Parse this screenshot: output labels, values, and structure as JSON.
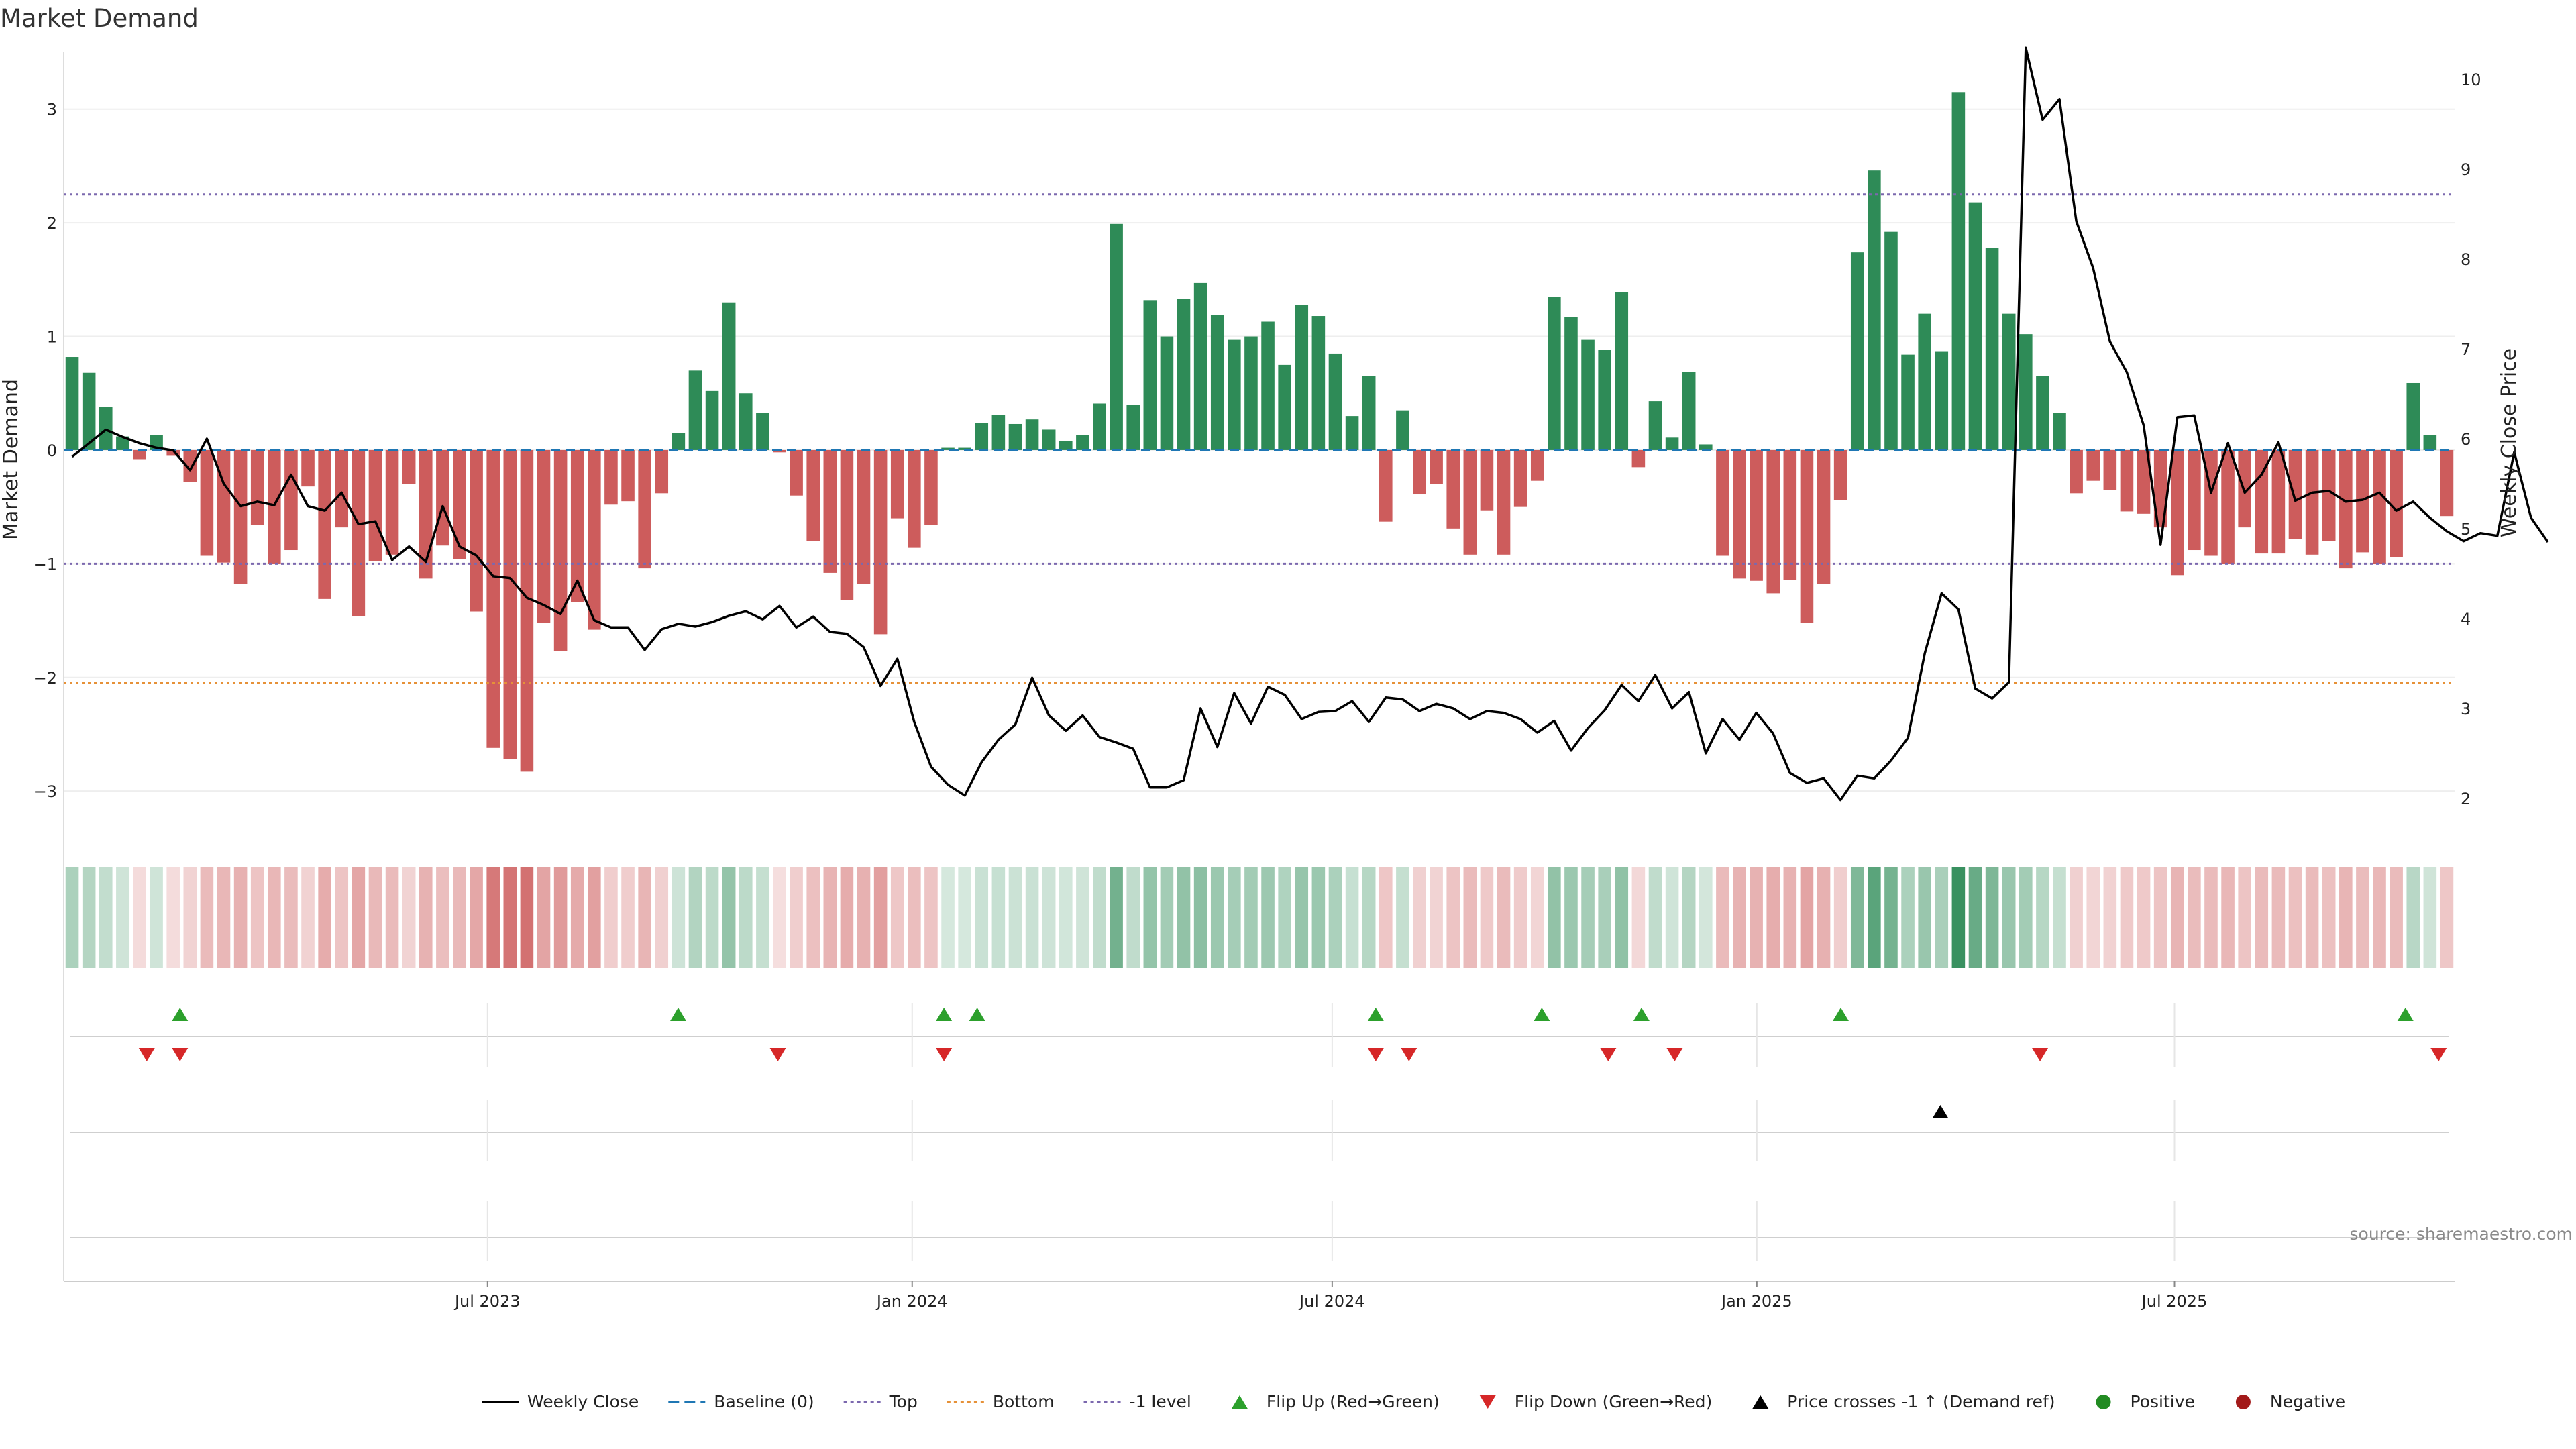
{
  "chart_data": {
    "type": "bar",
    "title": "Market Demand",
    "ylabel": "Market Demand",
    "y2label": "Weekly Close Price",
    "ylim": [
      -3.3,
      3.5
    ],
    "y2lim": [
      1.7,
      10.3
    ],
    "yticks": [
      -3,
      -2,
      -1,
      0,
      1,
      2,
      3
    ],
    "y2ticks": [
      2,
      3,
      4,
      5,
      6,
      7,
      8,
      9,
      10
    ],
    "start_date": "2023-01-02",
    "end_date": "2025-10-27",
    "xticks": [
      {
        "label": "Jul 2023",
        "date": "2023-07-01"
      },
      {
        "label": "Jan 2024",
        "date": "2024-01-01"
      },
      {
        "label": "Jul 2024",
        "date": "2024-07-01"
      },
      {
        "label": "Jan 2025",
        "date": "2025-01-01"
      },
      {
        "label": "Jul 2025",
        "date": "2025-07-01"
      }
    ],
    "reference_lines": [
      {
        "name": "Top",
        "value": 2.25,
        "color": "#7b68ae"
      },
      {
        "name": "-1 level",
        "value": -1.0,
        "color": "#7b68ae"
      },
      {
        "name": "Bottom",
        "value": -2.05,
        "color": "#e69138"
      },
      {
        "name": "Baseline (0)",
        "value": 0,
        "color": "#1f77b4"
      }
    ],
    "demand": [
      0.82,
      0.68,
      0.38,
      0.12,
      -0.08,
      0.13,
      -0.05,
      -0.28,
      -0.93,
      -0.99,
      -1.18,
      -0.66,
      -1.0,
      -0.88,
      -0.32,
      -1.31,
      -0.68,
      -1.46,
      -0.98,
      -0.92,
      -0.3,
      -1.13,
      -0.84,
      -0.96,
      -1.42,
      -2.62,
      -2.72,
      -2.83,
      -1.52,
      -1.77,
      -1.34,
      -1.58,
      -0.48,
      -0.45,
      -1.04,
      -0.38,
      0.15,
      0.7,
      0.52,
      1.3,
      0.5,
      0.33,
      -0.02,
      -0.4,
      -0.8,
      -1.08,
      -1.32,
      -1.18,
      -1.62,
      -0.6,
      -0.86,
      -0.66,
      0.02,
      0.02,
      0.24,
      0.31,
      0.23,
      0.27,
      0.18,
      0.08,
      0.13,
      0.41,
      1.99,
      0.4,
      1.32,
      1.0,
      1.33,
      1.47,
      1.19,
      0.97,
      1.0,
      1.13,
      0.75,
      1.28,
      1.18,
      0.85,
      0.3,
      0.65,
      -0.63,
      0.35,
      -0.39,
      -0.3,
      -0.69,
      -0.92,
      -0.53,
      -0.92,
      -0.5,
      -0.27,
      1.35,
      1.17,
      0.97,
      0.88,
      1.39,
      -0.15,
      0.43,
      0.11,
      0.69,
      0.05,
      -0.93,
      -1.13,
      -1.15,
      -1.26,
      -1.14,
      -1.52,
      -1.18,
      -0.44,
      1.74,
      2.46,
      1.92,
      0.84,
      1.2,
      0.87,
      3.15,
      2.18,
      1.78,
      1.2,
      1.02,
      0.65,
      0.33,
      -0.38,
      -0.27,
      -0.35,
      -0.54,
      -0.56,
      -0.68,
      -1.1,
      -0.88,
      -0.93,
      -1.0,
      -0.68,
      -0.91,
      -0.91,
      -0.78,
      -0.92,
      -0.8,
      -1.04,
      -0.9,
      -1.0,
      -0.94,
      0.59,
      0.13,
      -0.58
    ],
    "weekly_close": [
      5.8,
      5.95,
      6.1,
      6.02,
      5.95,
      5.9,
      5.87,
      5.65,
      6.0,
      5.5,
      5.25,
      5.3,
      5.26,
      5.6,
      5.25,
      5.2,
      5.4,
      5.05,
      5.08,
      4.65,
      4.8,
      4.63,
      5.25,
      4.8,
      4.7,
      4.47,
      4.45,
      4.23,
      4.15,
      4.05,
      4.42,
      3.98,
      3.9,
      3.9,
      3.65,
      3.88,
      3.94,
      3.91,
      3.96,
      4.03,
      4.08,
      3.99,
      4.14,
      3.9,
      4.02,
      3.85,
      3.83,
      3.68,
      3.25,
      3.55,
      2.85,
      2.35,
      2.15,
      2.03,
      2.4,
      2.65,
      2.82,
      3.34,
      2.92,
      2.75,
      2.92,
      2.68,
      2.62,
      2.55,
      2.12,
      2.12,
      2.2,
      3.0,
      2.57,
      3.17,
      2.83,
      3.24,
      3.15,
      2.88,
      2.96,
      2.97,
      3.08,
      2.85,
      3.12,
      3.1,
      2.97,
      3.05,
      3.0,
      2.88,
      2.97,
      2.95,
      2.88,
      2.73,
      2.86,
      2.53,
      2.78,
      2.98,
      3.26,
      3.08,
      3.37,
      3.0,
      3.18,
      2.5,
      2.88,
      2.65,
      2.95,
      2.72,
      2.28,
      2.17,
      2.22,
      1.98,
      2.25,
      2.22,
      2.42,
      2.67,
      3.61,
      4.28,
      4.1,
      3.22,
      3.11,
      3.29,
      10.6,
      9.55,
      9.78,
      8.42,
      7.9,
      7.08,
      6.74,
      6.15,
      4.82,
      6.24,
      6.26,
      5.4,
      5.95,
      5.4,
      5.6,
      5.96,
      5.31,
      5.4,
      5.42,
      5.3,
      5.32,
      5.4,
      5.2,
      5.3,
      5.12,
      4.97,
      4.86,
      4.95,
      4.92,
      5.85,
      5.12,
      4.85
    ],
    "flip_up_weeks": [
      3,
      18,
      26,
      27,
      39,
      44,
      47,
      53,
      70
    ],
    "flip_down_weeks": [
      2,
      3,
      21,
      26,
      39,
      40,
      46,
      48,
      59,
      71
    ],
    "price_cross_weeks": [
      56
    ]
  },
  "legend": [
    {
      "label": "Weekly Close",
      "marker": "line",
      "color": "#000000"
    },
    {
      "label": "Baseline (0)",
      "marker": "dashed",
      "color": "#1f77b4"
    },
    {
      "label": "Top",
      "marker": "dotted",
      "color": "#7b68ae"
    },
    {
      "label": "Bottom",
      "marker": "dotted",
      "color": "#e69138"
    },
    {
      "label": "-1 level",
      "marker": "dotted",
      "color": "#7b68ae"
    },
    {
      "label": "Flip Up (Red→Green)",
      "marker": "triangle-up",
      "color": "#2ca02c"
    },
    {
      "label": "Flip Down (Green→Red)",
      "marker": "triangle-down",
      "color": "#d62728"
    },
    {
      "label": "Price crosses -1 ↑ (Demand ref)",
      "marker": "triangle-up",
      "color": "#000000"
    },
    {
      "label": "Positive",
      "marker": "circle",
      "color": "#228b22"
    },
    {
      "label": "Negative",
      "marker": "circle",
      "color": "#a31a1a"
    }
  ],
  "source": "source: sharemaestro.com",
  "colors": {
    "positive": "#2e8b57",
    "negative": "#cd5c5c",
    "line": "#000000"
  }
}
